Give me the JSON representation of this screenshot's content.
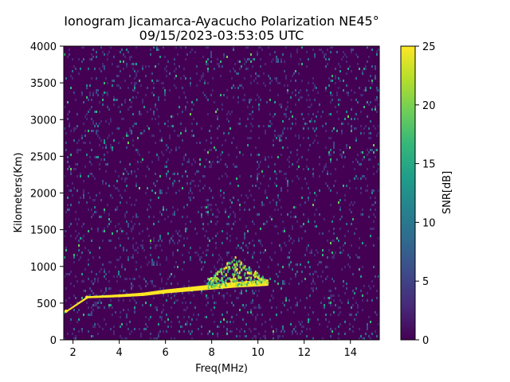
{
  "chart_data": {
    "type": "heatmap",
    "title": "Ionogram Jicamarca-Ayacucho Polarization NE45°",
    "subtitle": "09/15/2023-03:53:05 UTC",
    "xlabel": "Freq(MHz)",
    "ylabel": "Kilometers(Km)",
    "colorbar_label": "SNR[dB]",
    "xlim": [
      1.6,
      15.25
    ],
    "ylim": [
      0,
      4000
    ],
    "zlim": [
      0,
      25
    ],
    "x_ticks": [
      "2",
      "4",
      "6",
      "8",
      "10",
      "12",
      "14"
    ],
    "x_tick_values": [
      2,
      4,
      6,
      8,
      10,
      12,
      14
    ],
    "y_ticks": [
      "0",
      "500",
      "1000",
      "1500",
      "2000",
      "2500",
      "3000",
      "3500",
      "4000"
    ],
    "y_tick_values": [
      0,
      500,
      1000,
      1500,
      2000,
      2500,
      3000,
      3500,
      4000
    ],
    "colorbar_ticks": [
      "0",
      "5",
      "10",
      "15",
      "20",
      "25"
    ],
    "colorbar_tick_values": [
      0,
      5,
      10,
      15,
      20,
      25
    ],
    "colormap": "viridis",
    "colors": [
      "#440154",
      "#482878",
      "#3e4989",
      "#31688e",
      "#26828e",
      "#1f9e89",
      "#35b779",
      "#6ece58",
      "#b5de2b",
      "#fde725"
    ],
    "background_snr_db": 1,
    "trace_points": [
      {
        "freq_mhz": 1.7,
        "km": 390,
        "snr_db": 25
      },
      {
        "freq_mhz": 2.6,
        "km": 580,
        "snr_db": 25
      },
      {
        "freq_mhz": 4.0,
        "km": 600,
        "snr_db": 25
      },
      {
        "freq_mhz": 5.0,
        "km": 620,
        "snr_db": 25
      },
      {
        "freq_mhz": 6.0,
        "km": 660,
        "snr_db": 25
      },
      {
        "freq_mhz": 7.0,
        "km": 690,
        "snr_db": 25
      },
      {
        "freq_mhz": 8.0,
        "km": 720,
        "snr_db": 25
      },
      {
        "freq_mhz": 9.0,
        "km": 750,
        "snr_db": 25
      },
      {
        "freq_mhz": 10.0,
        "km": 770,
        "snr_db": 22
      },
      {
        "freq_mhz": 10.4,
        "km": 780,
        "snr_db": 20
      }
    ],
    "spread_region": {
      "freq_mhz": [
        7.8,
        10.3
      ],
      "km": [
        700,
        1150
      ],
      "snr_db": 20
    }
  }
}
